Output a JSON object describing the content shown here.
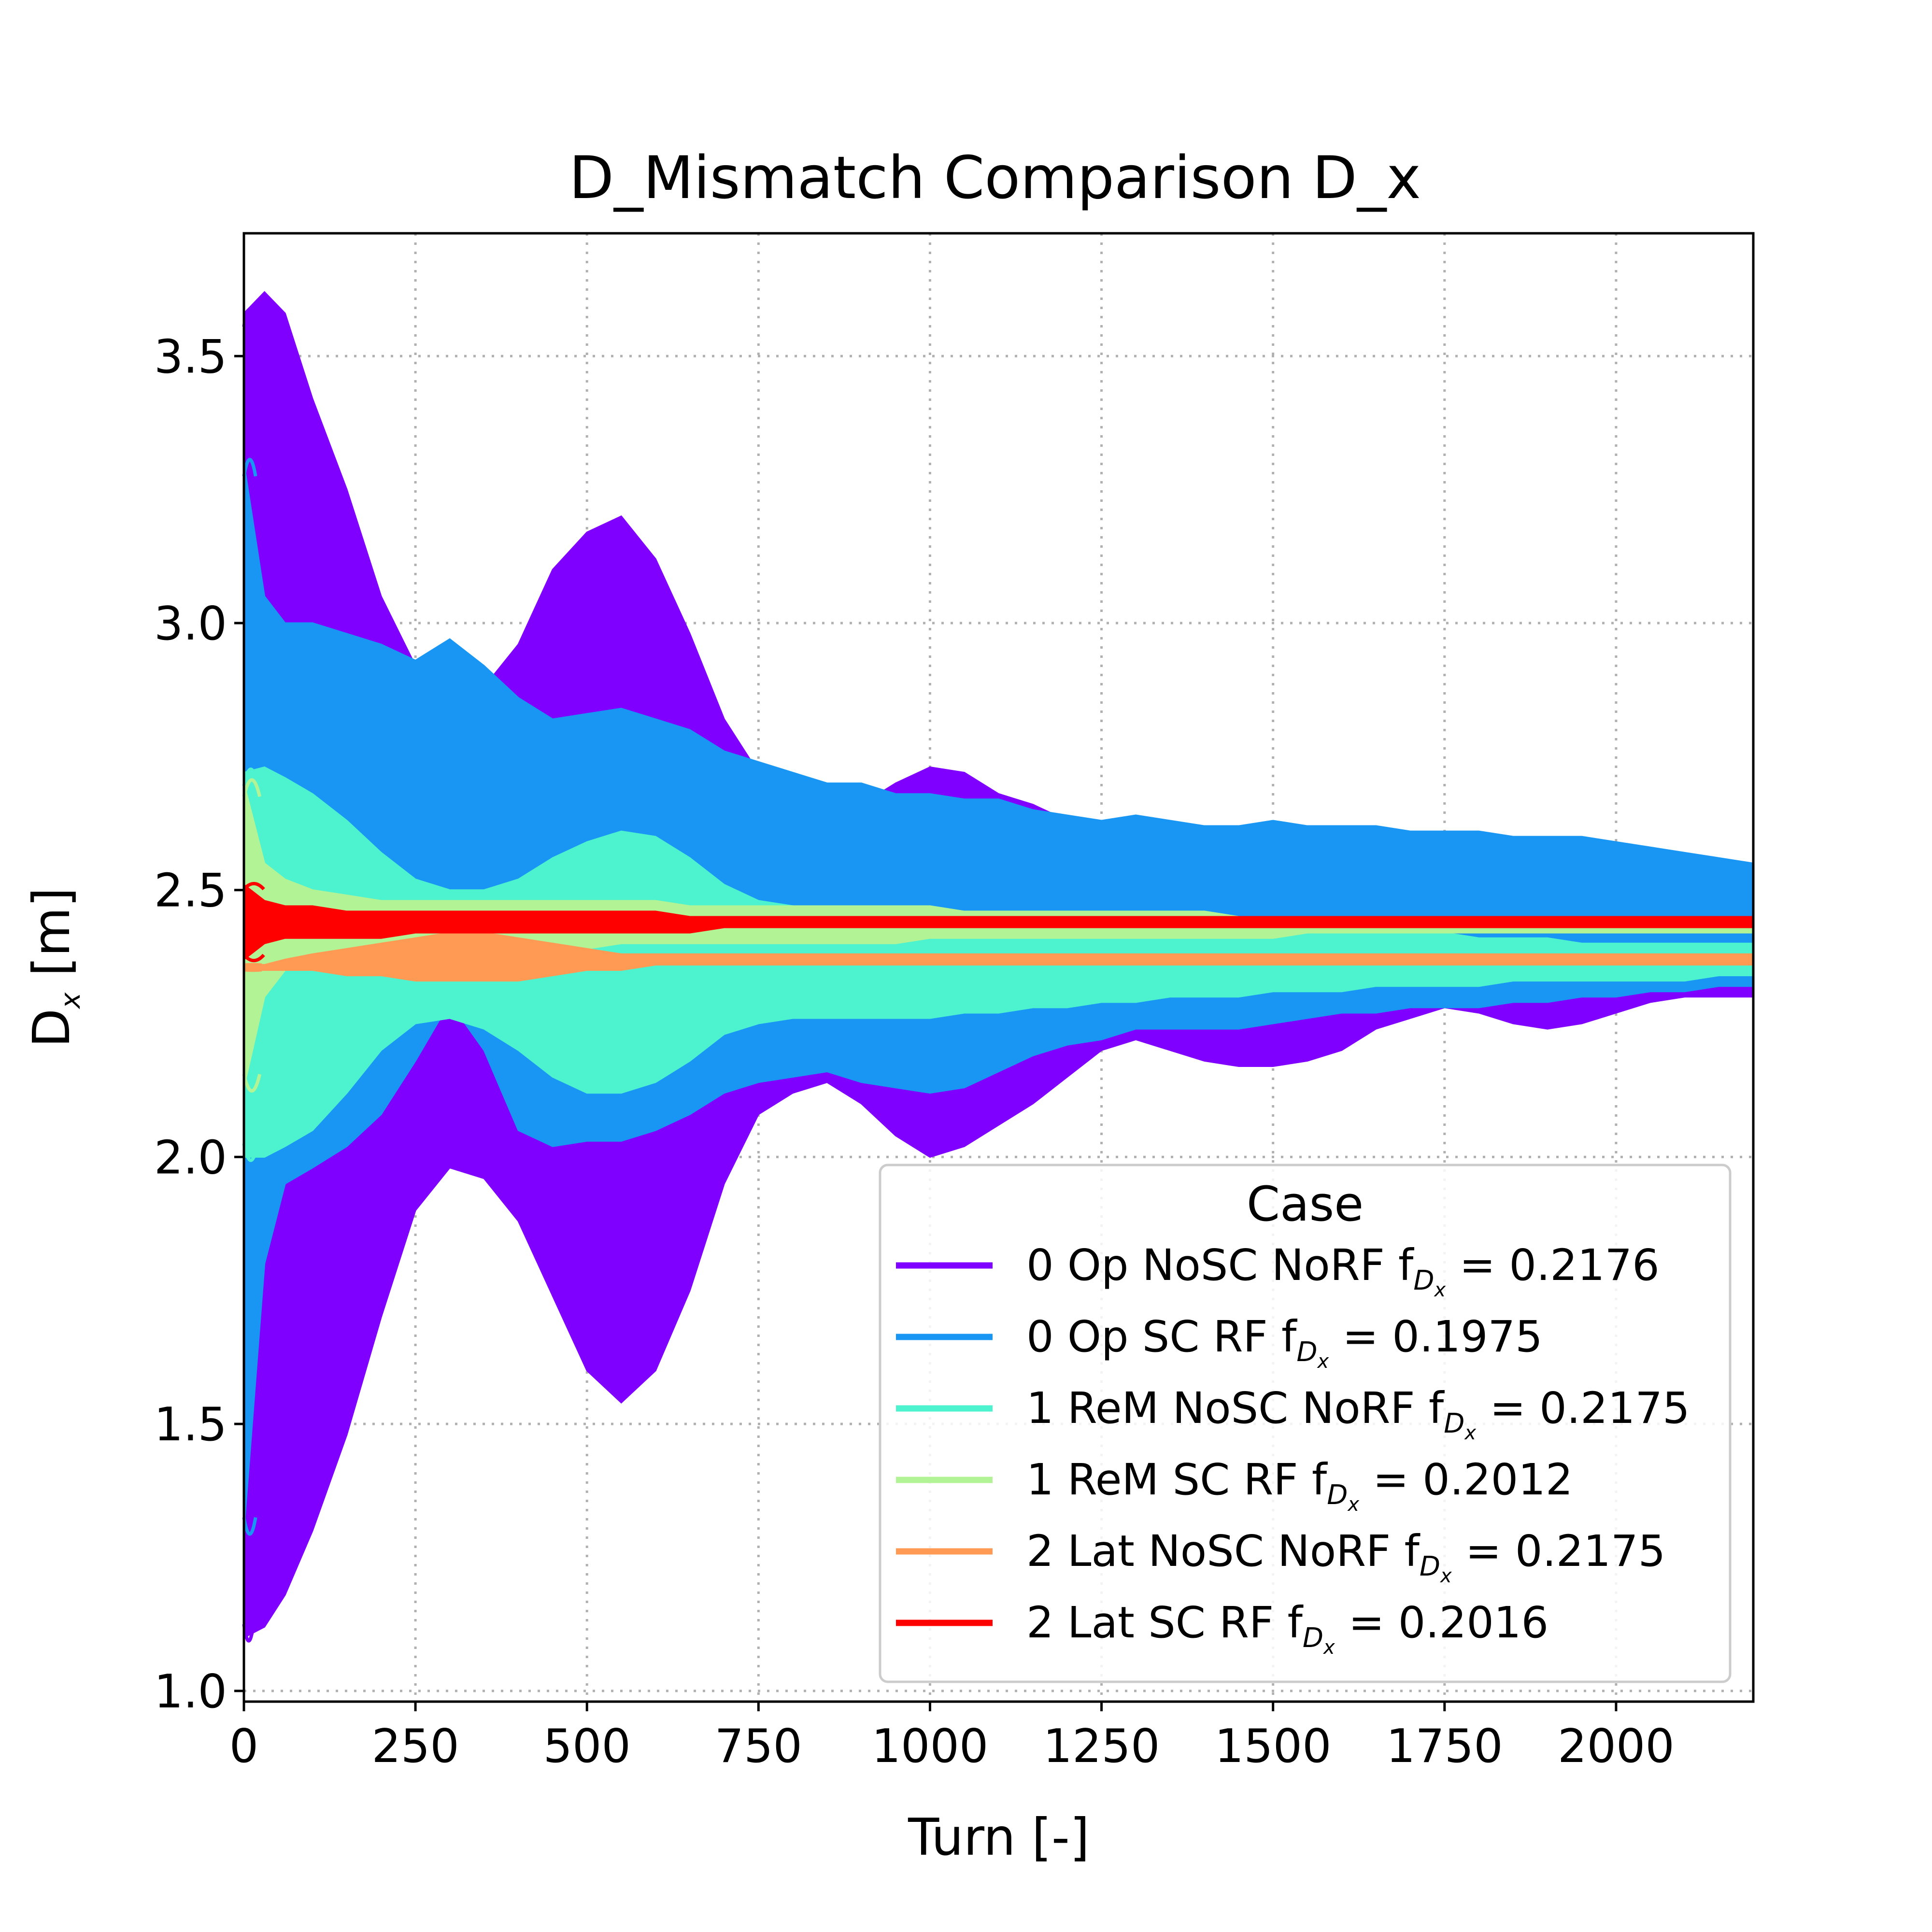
{
  "chart_data": {
    "type": "area",
    "title": "D_Mismatch Comparison D_x",
    "xlabel": "Turn [-]",
    "ylabel": {
      "main": "D",
      "sub": "x",
      "unit": " [m]"
    },
    "xlim": [
      0,
      2200
    ],
    "ylim": [
      0.98,
      3.73
    ],
    "x_ticks": [
      0,
      250,
      500,
      750,
      1000,
      1250,
      1500,
      1750,
      2000
    ],
    "y_ticks": [
      1.0,
      1.5,
      2.0,
      2.5,
      3.0,
      3.5
    ],
    "y_tick_labels": [
      "1.0",
      "1.5",
      "2.0",
      "2.5",
      "3.0",
      "3.5"
    ],
    "grid": true,
    "legend": {
      "title": "Case",
      "placement": "lower right"
    },
    "series": [
      {
        "name": "0 Op NoSC NoRF",
        "freq": "0.2176",
        "color": "#8000ff",
        "x": [
          0,
          30,
          60,
          100,
          150,
          200,
          250,
          300,
          350,
          400,
          450,
          500,
          550,
          600,
          650,
          700,
          750,
          800,
          850,
          900,
          950,
          1000,
          1050,
          1100,
          1150,
          1200,
          1250,
          1300,
          1350,
          1400,
          1450,
          1500,
          1550,
          1600,
          1650,
          1700,
          1750,
          1800,
          1850,
          1900,
          1950,
          2000,
          2050,
          2100,
          2150,
          2200
        ],
        "upper": [
          3.58,
          3.62,
          3.58,
          3.42,
          3.25,
          3.05,
          2.92,
          2.92,
          2.88,
          2.96,
          3.1,
          3.17,
          3.2,
          3.12,
          2.98,
          2.82,
          2.72,
          2.7,
          2.68,
          2.66,
          2.7,
          2.73,
          2.72,
          2.68,
          2.66,
          2.63,
          2.6,
          2.62,
          2.6,
          2.59,
          2.6,
          2.59,
          2.6,
          2.59,
          2.6,
          2.6,
          2.59,
          2.6,
          2.59,
          2.58,
          2.59,
          2.58,
          2.57,
          2.55,
          2.54,
          2.54
        ],
        "lower": [
          1.1,
          1.12,
          1.18,
          1.3,
          1.48,
          1.7,
          1.9,
          1.98,
          1.96,
          1.88,
          1.74,
          1.6,
          1.54,
          1.6,
          1.75,
          1.95,
          2.08,
          2.12,
          2.14,
          2.1,
          2.04,
          2.0,
          2.02,
          2.06,
          2.1,
          2.15,
          2.2,
          2.22,
          2.2,
          2.18,
          2.17,
          2.17,
          2.18,
          2.2,
          2.24,
          2.26,
          2.28,
          2.27,
          2.25,
          2.24,
          2.25,
          2.27,
          2.29,
          2.3,
          2.3,
          2.3
        ]
      },
      {
        "name": "0 Op SC RF",
        "freq": "0.1975",
        "color": "#1996f3",
        "x": [
          0,
          30,
          60,
          100,
          150,
          200,
          250,
          300,
          350,
          400,
          450,
          500,
          550,
          600,
          650,
          700,
          750,
          800,
          850,
          900,
          950,
          1000,
          1050,
          1100,
          1150,
          1200,
          1250,
          1300,
          1350,
          1400,
          1450,
          1500,
          1550,
          1600,
          1650,
          1700,
          1750,
          1800,
          1850,
          1900,
          1950,
          2000,
          2050,
          2100,
          2150,
          2200
        ],
        "upper": [
          3.3,
          3.05,
          3.0,
          3.0,
          2.98,
          2.96,
          2.93,
          2.97,
          2.92,
          2.86,
          2.82,
          2.83,
          2.84,
          2.82,
          2.8,
          2.76,
          2.74,
          2.72,
          2.7,
          2.7,
          2.68,
          2.68,
          2.67,
          2.67,
          2.65,
          2.64,
          2.63,
          2.64,
          2.63,
          2.62,
          2.62,
          2.63,
          2.62,
          2.62,
          2.62,
          2.61,
          2.61,
          2.61,
          2.6,
          2.6,
          2.6,
          2.59,
          2.58,
          2.57,
          2.56,
          2.55
        ],
        "lower": [
          1.3,
          1.8,
          1.95,
          1.98,
          2.02,
          2.08,
          2.18,
          2.29,
          2.2,
          2.05,
          2.02,
          2.03,
          2.03,
          2.05,
          2.08,
          2.12,
          2.14,
          2.15,
          2.16,
          2.14,
          2.13,
          2.12,
          2.13,
          2.16,
          2.19,
          2.21,
          2.22,
          2.24,
          2.24,
          2.24,
          2.24,
          2.25,
          2.26,
          2.27,
          2.27,
          2.28,
          2.28,
          2.28,
          2.29,
          2.29,
          2.3,
          2.3,
          2.31,
          2.31,
          2.32,
          2.32
        ]
      },
      {
        "name": "1 ReM NoSC NoRF",
        "freq": "0.2175",
        "color": "#4df3ce",
        "x": [
          0,
          30,
          60,
          100,
          150,
          200,
          250,
          300,
          350,
          400,
          450,
          500,
          550,
          600,
          650,
          700,
          750,
          800,
          850,
          900,
          950,
          1000,
          1050,
          1100,
          1150,
          1200,
          1250,
          1300,
          1350,
          1400,
          1450,
          1500,
          1550,
          1600,
          1650,
          1700,
          1750,
          1800,
          1850,
          1900,
          1950,
          2000,
          2050,
          2100,
          2150,
          2200
        ],
        "upper": [
          2.72,
          2.73,
          2.71,
          2.68,
          2.63,
          2.57,
          2.52,
          2.5,
          2.5,
          2.52,
          2.56,
          2.59,
          2.61,
          2.6,
          2.56,
          2.51,
          2.48,
          2.47,
          2.46,
          2.45,
          2.45,
          2.45,
          2.45,
          2.45,
          2.45,
          2.44,
          2.44,
          2.44,
          2.44,
          2.43,
          2.43,
          2.43,
          2.43,
          2.42,
          2.42,
          2.42,
          2.42,
          2.41,
          2.41,
          2.41,
          2.4,
          2.4,
          2.4,
          2.4,
          2.4,
          2.4
        ],
        "lower": [
          2.0,
          2.0,
          2.02,
          2.05,
          2.12,
          2.2,
          2.25,
          2.26,
          2.24,
          2.2,
          2.15,
          2.12,
          2.12,
          2.14,
          2.18,
          2.23,
          2.25,
          2.26,
          2.26,
          2.26,
          2.26,
          2.26,
          2.27,
          2.27,
          2.28,
          2.28,
          2.29,
          2.29,
          2.3,
          2.3,
          2.3,
          2.31,
          2.31,
          2.31,
          2.32,
          2.32,
          2.32,
          2.32,
          2.33,
          2.33,
          2.33,
          2.33,
          2.33,
          2.33,
          2.34,
          2.34
        ]
      },
      {
        "name": "1 ReM SC RF",
        "freq": "0.2012",
        "color": "#b2f396",
        "x": [
          0,
          30,
          60,
          100,
          150,
          200,
          250,
          300,
          350,
          400,
          450,
          500,
          550,
          600,
          650,
          700,
          750,
          800,
          850,
          900,
          950,
          1000,
          1050,
          1100,
          1150,
          1200,
          1250,
          1300,
          1350,
          1400,
          1450,
          1500,
          1550,
          1600,
          1650,
          1700,
          1750,
          1800,
          1850,
          1900,
          1950,
          2000,
          2050,
          2100,
          2150,
          2200
        ],
        "upper": [
          2.7,
          2.55,
          2.52,
          2.5,
          2.49,
          2.48,
          2.48,
          2.48,
          2.48,
          2.48,
          2.48,
          2.48,
          2.48,
          2.48,
          2.47,
          2.47,
          2.47,
          2.47,
          2.47,
          2.47,
          2.47,
          2.47,
          2.46,
          2.46,
          2.46,
          2.46,
          2.46,
          2.46,
          2.46,
          2.46,
          2.45,
          2.45,
          2.45,
          2.45,
          2.45,
          2.45,
          2.45,
          2.45,
          2.45,
          2.45,
          2.45,
          2.45,
          2.45,
          2.45,
          2.45,
          2.45
        ],
        "lower": [
          2.13,
          2.3,
          2.35,
          2.37,
          2.38,
          2.38,
          2.39,
          2.39,
          2.39,
          2.39,
          2.39,
          2.39,
          2.4,
          2.4,
          2.4,
          2.4,
          2.4,
          2.4,
          2.4,
          2.4,
          2.4,
          2.41,
          2.41,
          2.41,
          2.41,
          2.41,
          2.41,
          2.41,
          2.41,
          2.41,
          2.41,
          2.41,
          2.42,
          2.42,
          2.42,
          2.42,
          2.42,
          2.42,
          2.42,
          2.42,
          2.42,
          2.42,
          2.42,
          2.42,
          2.42,
          2.42
        ]
      },
      {
        "name": "2 Lat NoSC NoRF",
        "freq": "0.2175",
        "color": "#ff9a55",
        "x": [
          0,
          30,
          60,
          100,
          150,
          200,
          250,
          300,
          350,
          400,
          450,
          500,
          550,
          600,
          650,
          700,
          750,
          800,
          850,
          900,
          950,
          1000,
          1050,
          1100,
          1150,
          1200,
          1250,
          1300,
          1350,
          1400,
          1450,
          1500,
          1550,
          1600,
          1650,
          1700,
          1750,
          1800,
          1850,
          1900,
          1950,
          2000,
          2050,
          2100,
          2150,
          2200
        ],
        "upper": [
          2.36,
          2.36,
          2.37,
          2.38,
          2.39,
          2.4,
          2.41,
          2.42,
          2.42,
          2.41,
          2.4,
          2.39,
          2.38,
          2.38,
          2.38,
          2.38,
          2.38,
          2.38,
          2.38,
          2.38,
          2.38,
          2.38,
          2.38,
          2.38,
          2.38,
          2.38,
          2.38,
          2.38,
          2.38,
          2.38,
          2.38,
          2.38,
          2.38,
          2.38,
          2.38,
          2.38,
          2.38,
          2.38,
          2.38,
          2.38,
          2.38,
          2.38,
          2.38,
          2.38,
          2.38,
          2.38
        ],
        "lower": [
          2.35,
          2.35,
          2.35,
          2.35,
          2.34,
          2.34,
          2.33,
          2.33,
          2.33,
          2.33,
          2.34,
          2.35,
          2.35,
          2.36,
          2.36,
          2.36,
          2.36,
          2.36,
          2.36,
          2.36,
          2.36,
          2.36,
          2.36,
          2.36,
          2.36,
          2.36,
          2.36,
          2.36,
          2.36,
          2.36,
          2.36,
          2.36,
          2.36,
          2.36,
          2.36,
          2.36,
          2.36,
          2.36,
          2.36,
          2.36,
          2.36,
          2.36,
          2.36,
          2.36,
          2.36,
          2.36
        ]
      },
      {
        "name": "2 Lat SC RF",
        "freq": "0.2016",
        "color": "#ff0000",
        "x": [
          0,
          30,
          60,
          100,
          150,
          200,
          250,
          300,
          350,
          400,
          450,
          500,
          550,
          600,
          650,
          700,
          750,
          800,
          850,
          900,
          950,
          1000,
          1050,
          1100,
          1150,
          1200,
          1250,
          1300,
          1350,
          1400,
          1450,
          1500,
          1550,
          1600,
          1650,
          1700,
          1750,
          1800,
          1850,
          1900,
          1950,
          2000,
          2050,
          2100,
          2150,
          2200
        ],
        "upper": [
          2.51,
          2.48,
          2.47,
          2.47,
          2.46,
          2.46,
          2.46,
          2.46,
          2.46,
          2.46,
          2.46,
          2.46,
          2.46,
          2.46,
          2.45,
          2.45,
          2.45,
          2.45,
          2.45,
          2.45,
          2.45,
          2.45,
          2.45,
          2.45,
          2.45,
          2.45,
          2.45,
          2.45,
          2.45,
          2.45,
          2.45,
          2.45,
          2.45,
          2.45,
          2.45,
          2.45,
          2.45,
          2.45,
          2.45,
          2.45,
          2.45,
          2.45,
          2.45,
          2.45,
          2.45,
          2.45
        ],
        "lower": [
          2.37,
          2.4,
          2.41,
          2.41,
          2.41,
          2.41,
          2.42,
          2.42,
          2.42,
          2.42,
          2.42,
          2.42,
          2.42,
          2.42,
          2.42,
          2.43,
          2.43,
          2.43,
          2.43,
          2.43,
          2.43,
          2.43,
          2.43,
          2.43,
          2.43,
          2.43,
          2.43,
          2.43,
          2.43,
          2.43,
          2.43,
          2.43,
          2.43,
          2.43,
          2.43,
          2.43,
          2.43,
          2.43,
          2.43,
          2.43,
          2.43,
          2.43,
          2.43,
          2.43,
          2.43,
          2.43
        ]
      }
    ]
  }
}
